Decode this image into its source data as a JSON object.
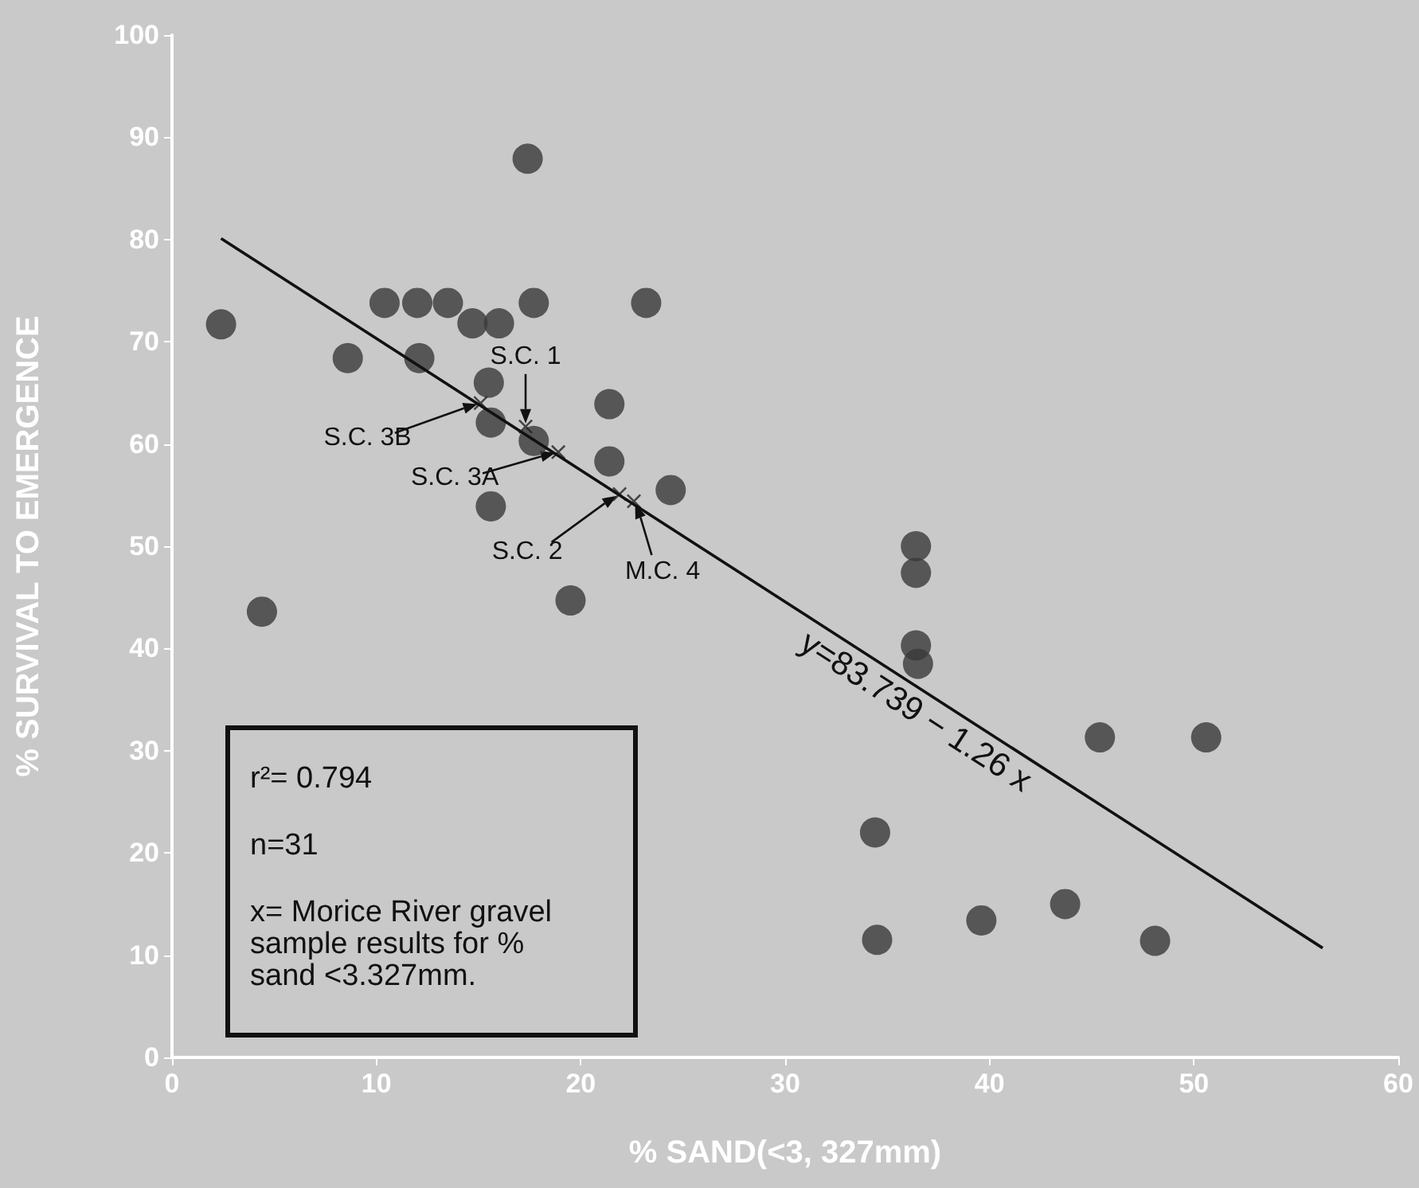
{
  "chart_data": {
    "type": "scatter",
    "xlabel": "% SAND(<3, 327mm)",
    "ylabel": "% SURVIVAL TO EMERGENCE",
    "xlim": [
      0,
      60
    ],
    "xticks": [
      0,
      10,
      20,
      30,
      40,
      50,
      60
    ],
    "ylim": [
      0,
      100
    ],
    "yticks": [
      0,
      10,
      20,
      30,
      40,
      50,
      60,
      70,
      80,
      90,
      100
    ],
    "grid": false,
    "marker": "circle",
    "series": [
      {
        "color": "#3a3a3a",
        "x": [
          2.4,
          4.4,
          8.6,
          10.4,
          12.0,
          12.1,
          13.5,
          14.7,
          16.0,
          15.5,
          15.6,
          15.6,
          17.4,
          17.7,
          17.7,
          19.5,
          21.4,
          21.4,
          23.2,
          24.4,
          36.4,
          36.4,
          36.4,
          36.5,
          34.4,
          34.5,
          39.6,
          43.7,
          45.4,
          48.1,
          50.6
        ],
        "values": [
          71.7,
          43.6,
          68.4,
          73.8,
          73.8,
          68.4,
          73.8,
          71.8,
          71.8,
          66.0,
          62.1,
          53.9,
          87.9,
          73.8,
          60.3,
          44.7,
          63.9,
          58.3,
          73.8,
          55.5,
          50.0,
          47.4,
          40.3,
          38.5,
          22.0,
          11.5,
          13.4,
          15.0,
          31.3,
          11.4,
          31.3
        ]
      },
      {
        "marker": "cross",
        "color": "#222222",
        "x": [
          15.1,
          17.3,
          18.9,
          21.9,
          22.6
        ],
        "values": [
          64.0,
          61.7,
          59.2,
          55.1,
          54.4
        ]
      },
      {
        "type": "line",
        "color": "#111111",
        "marker": "none",
        "x": [
          2.4,
          56.3
        ],
        "values": [
          80.1,
          10.7
        ]
      }
    ],
    "annotations": [
      "r²= 0.794",
      "n=31",
      "x= Morice River gravel sample results for % sand <3.327mm.",
      "y=83.739 − 1.26 x",
      {
        "text": "S.C. 3B",
        "x": 15.1,
        "y": 64.0
      },
      {
        "text": "S.C. 1",
        "x": 17.3,
        "y": 61.7
      },
      {
        "text": "S.C. 3A",
        "x": 18.9,
        "y": 59.2
      },
      {
        "text": "S.C. 2",
        "x": 21.9,
        "y": 55.1
      },
      {
        "text": "M.C. 4",
        "x": 22.6,
        "y": 54.4
      }
    ]
  }
}
